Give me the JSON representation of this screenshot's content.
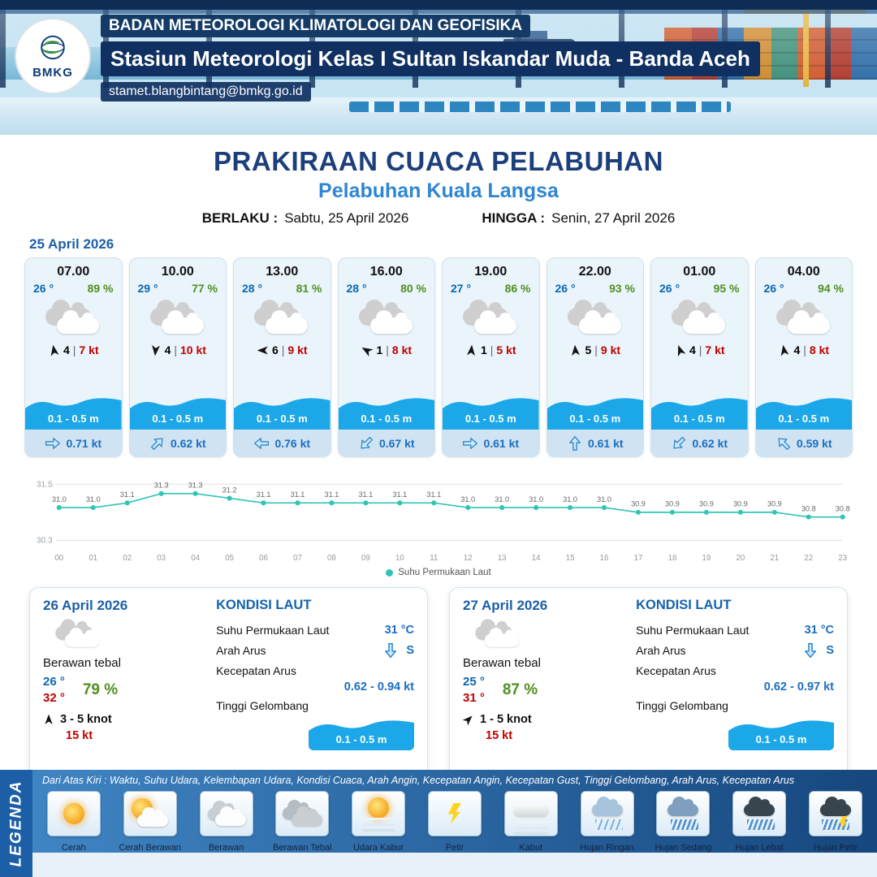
{
  "header": {
    "agency": "BADAN METEOROLOGI KLIMATOLOGI DAN GEOFISIKA",
    "station": "Stasiun Meteorologi Kelas I Sultan Iskandar Muda - Banda Aceh",
    "email": "stamet.blangbintang@bmkg.go.id",
    "logo_text": "BMKG"
  },
  "title_block": {
    "main": "PRAKIRAAN CUACA PELABUHAN",
    "port": "Pelabuhan Kuala Langsa",
    "berlaku_label": "BERLAKU :",
    "berlaku_value": "Sabtu, 25 April 2026",
    "hingga_label": "HINGGA :",
    "hingga_value": "Senin, 27 April 2026"
  },
  "hourly_date": "25 April 2026",
  "hourly": [
    {
      "time": "07.00",
      "temp": "26 °",
      "rh": "89 %",
      "wind_num": "4",
      "wind_kt": "7 kt",
      "wind_deg": -10,
      "wave": "0.1 - 0.5 m",
      "cur": "0.71 kt",
      "cur_deg": 0
    },
    {
      "time": "10.00",
      "temp": "29 °",
      "rh": "77 %",
      "wind_num": "4",
      "wind_kt": "10 kt",
      "wind_deg": 185,
      "wave": "0.1 - 0.5 m",
      "cur": "0.62 kt",
      "cur_deg": -45
    },
    {
      "time": "13.00",
      "temp": "28 °",
      "rh": "81 %",
      "wind_num": "6",
      "wind_kt": "9 kt",
      "wind_deg": 270,
      "wave": "0.1 - 0.5 m",
      "cur": "0.76 kt",
      "cur_deg": 180
    },
    {
      "time": "16.00",
      "temp": "28 °",
      "rh": "80 %",
      "wind_num": "1",
      "wind_kt": "8 kt",
      "wind_deg": 300,
      "wave": "0.1 - 0.5 m",
      "cur": "0.67 kt",
      "cur_deg": 135
    },
    {
      "time": "19.00",
      "temp": "27 °",
      "rh": "86 %",
      "wind_num": "1",
      "wind_kt": "5 kt",
      "wind_deg": 5,
      "wave": "0.1 - 0.5 m",
      "cur": "0.61 kt",
      "cur_deg": 0
    },
    {
      "time": "22.00",
      "temp": "26 °",
      "rh": "93 %",
      "wind_num": "5",
      "wind_kt": "9 kt",
      "wind_deg": -5,
      "wave": "0.1 - 0.5 m",
      "cur": "0.61 kt",
      "cur_deg": -90
    },
    {
      "time": "01.00",
      "temp": "26 °",
      "rh": "95 %",
      "wind_num": "4",
      "wind_kt": "7 kt",
      "wind_deg": -20,
      "wave": "0.1 - 0.5 m",
      "cur": "0.62 kt",
      "cur_deg": 135
    },
    {
      "time": "04.00",
      "temp": "26 °",
      "rh": "94 %",
      "wind_num": "4",
      "wind_kt": "8 kt",
      "wind_deg": -10,
      "wave": "0.1 - 0.5 m",
      "cur": "0.59 kt",
      "cur_deg": -135
    }
  ],
  "chart_data": {
    "type": "line",
    "title": "",
    "xlabel": "",
    "ylabel": "",
    "x": [
      "00",
      "01",
      "02",
      "03",
      "04",
      "05",
      "06",
      "07",
      "08",
      "09",
      "10",
      "11",
      "12",
      "13",
      "14",
      "15",
      "16",
      "17",
      "18",
      "19",
      "20",
      "21",
      "22",
      "23"
    ],
    "series": [
      {
        "name": "Suhu Permukaan Laut",
        "values": [
          31.0,
          31.0,
          31.1,
          31.3,
          31.3,
          31.2,
          31.1,
          31.1,
          31.1,
          31.1,
          31.1,
          31.1,
          31.0,
          31.0,
          31.0,
          31.0,
          31.0,
          30.9,
          30.9,
          30.9,
          30.9,
          30.9,
          30.8,
          30.8
        ]
      }
    ],
    "ylim": [
      30.3,
      31.5
    ],
    "yticks": [
      31.5,
      30.3
    ],
    "line_color": "#2fc5b5",
    "grid": true,
    "legend_position": "bottom"
  },
  "sea_labels": {
    "heading": "KONDISI LAUT",
    "sst": "Suhu Permukaan Laut",
    "arus": "Arah Arus",
    "kec": "Kecepatan Arus",
    "gel": "Tinggi Gelombang"
  },
  "daily": [
    {
      "date": "26 April 2026",
      "condition": "Berawan tebal",
      "temp_min": "26 °",
      "temp_max": "32 °",
      "rh": "79 %",
      "wind_range": "3 - 5 knot",
      "gust": "15 kt",
      "wind_deg": 0,
      "sst": "31 °C",
      "arus_dir": "S",
      "kec": "0.62 - 0.94 kt",
      "gel": "0.1 - 0.5 m"
    },
    {
      "date": "27 April 2026",
      "condition": "Berawan tebal",
      "temp_min": "25 °",
      "temp_max": "31 °",
      "rh": "87 %",
      "wind_range": "1 - 5 knot",
      "gust": "15 kt",
      "wind_deg": 45,
      "sst": "31 °C",
      "arus_dir": "S",
      "kec": "0.62 - 0.97 kt",
      "gel": "0.1 - 0.5 m"
    }
  ],
  "legend": {
    "title": "LEGENDA",
    "description": "Dari Atas Kiri : Waktu, Suhu Udara, Kelembapan Udara, Kondisi Cuaca, Arah Angin, Kecepatan Angin, Kecepatan Gust, Tinggi Gelombang, Arah Arus, Kecepatan Arus",
    "items": [
      {
        "icon": "sun-icon",
        "label": "Cerah"
      },
      {
        "icon": "sun-cloud-icon",
        "label": "Cerah Berawan"
      },
      {
        "icon": "cloud-icon",
        "label": "Berawan"
      },
      {
        "icon": "clouds-icon",
        "label": "Berawan Tebal"
      },
      {
        "icon": "haze-icon",
        "label": "Udara Kabur"
      },
      {
        "icon": "lightning-icon",
        "label": "Petir"
      },
      {
        "icon": "fog-icon",
        "label": "Kabut"
      },
      {
        "icon": "light-rain-icon",
        "label": "Hujan Ringan"
      },
      {
        "icon": "moderate-rain-icon",
        "label": "Hujan Sedang"
      },
      {
        "icon": "heavy-rain-icon",
        "label": "Hujan Lebat"
      },
      {
        "icon": "thunderstorm-icon",
        "label": "Hujan Petir"
      }
    ]
  },
  "colors": {
    "navy": "#14365f",
    "title_blue": "#1c3f7c",
    "port_blue": "#2f86d2",
    "date_blue": "#1b5fa8",
    "temp_blue": "#0b67b2",
    "humidity_green": "#4f8f1f",
    "wind_red": "#c00000",
    "wave_blue": "#1ba7e8",
    "current_blue": "#1b6ec2",
    "chart_teal": "#2fc5b5"
  }
}
